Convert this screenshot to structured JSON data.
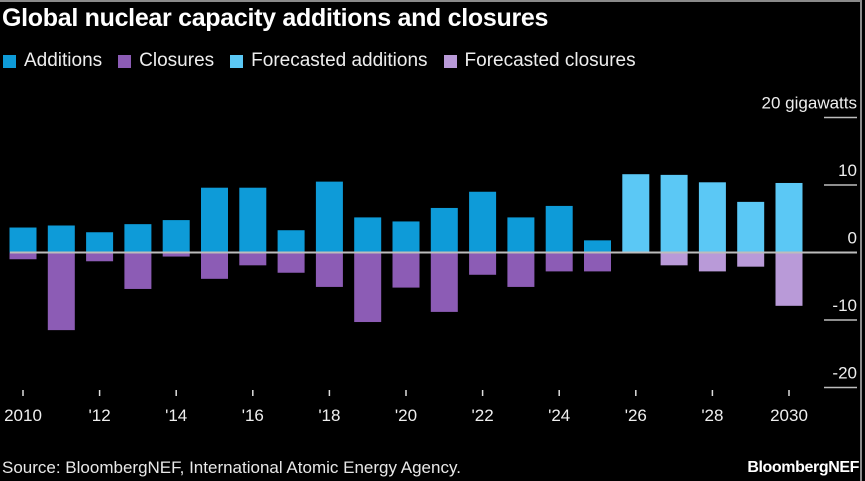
{
  "title": "Global nuclear capacity additions and closures",
  "legend": [
    {
      "label": "Additions",
      "color": "#0e9bd8"
    },
    {
      "label": "Closures",
      "color": "#8c5cb5"
    },
    {
      "label": "Forecasted additions",
      "color": "#5bc8f5"
    },
    {
      "label": "Forecasted closures",
      "color": "#b99ad8"
    }
  ],
  "source": "Source: BloombergNEF, International Atomic Energy Agency.",
  "brand": "BloombergNEF",
  "chart_data": {
    "type": "bar",
    "title": "Global nuclear capacity additions and closures",
    "xlabel": "",
    "ylabel": "gigawatts",
    "unit_label": "20 gigawatts",
    "ylim": [
      -20,
      20
    ],
    "yticks": [
      20,
      10,
      0,
      -10,
      -20
    ],
    "ytick_labels": [
      "20 gigawatts",
      "10",
      "0",
      "-10",
      "-20"
    ],
    "grid": false,
    "legend_position": "top-left",
    "categories": [
      2010,
      2011,
      2012,
      2013,
      2014,
      2015,
      2016,
      2017,
      2018,
      2019,
      2020,
      2021,
      2022,
      2023,
      2024,
      2025,
      2026,
      2027,
      2028,
      2029,
      2030
    ],
    "xtick_labels": [
      {
        "year": 2010,
        "label": "2010"
      },
      {
        "year": 2012,
        "label": "'12"
      },
      {
        "year": 2014,
        "label": "'14"
      },
      {
        "year": 2016,
        "label": "'16"
      },
      {
        "year": 2018,
        "label": "'18"
      },
      {
        "year": 2020,
        "label": "'20"
      },
      {
        "year": 2022,
        "label": "'22"
      },
      {
        "year": 2024,
        "label": "'24"
      },
      {
        "year": 2026,
        "label": "'26"
      },
      {
        "year": 2028,
        "label": "'28"
      },
      {
        "year": 2030,
        "label": "2030"
      }
    ],
    "forecast_start": 2026,
    "series": [
      {
        "name": "Additions",
        "values": [
          3.7,
          4.0,
          3.0,
          4.2,
          4.8,
          9.6,
          9.6,
          3.3,
          10.5,
          5.2,
          4.6,
          6.6,
          9.0,
          5.2,
          6.9,
          1.8,
          null,
          null,
          null,
          null,
          null
        ]
      },
      {
        "name": "Closures",
        "values": [
          -1.0,
          -11.5,
          -1.3,
          -5.4,
          -0.6,
          -3.9,
          -1.9,
          -3.0,
          -5.1,
          -10.3,
          -5.2,
          -8.8,
          -3.3,
          -5.1,
          -2.8,
          -2.8,
          null,
          null,
          null,
          null,
          null
        ]
      },
      {
        "name": "Forecasted additions",
        "values": [
          null,
          null,
          null,
          null,
          null,
          null,
          null,
          null,
          null,
          null,
          null,
          null,
          null,
          null,
          null,
          null,
          11.6,
          11.5,
          10.4,
          7.5,
          10.3
        ]
      },
      {
        "name": "Forecasted closures",
        "values": [
          null,
          null,
          null,
          null,
          null,
          null,
          null,
          null,
          null,
          null,
          null,
          null,
          null,
          null,
          null,
          null,
          0,
          -1.9,
          -2.8,
          -2.1,
          -7.9
        ]
      }
    ]
  }
}
